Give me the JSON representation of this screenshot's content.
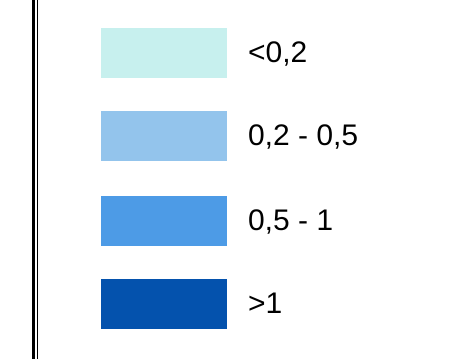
{
  "legend": {
    "items": [
      {
        "label": "<0,2",
        "color": "#c7f0ee"
      },
      {
        "label": "0,2 - 0,5",
        "color": "#93c4ec"
      },
      {
        "label": "0,5 - 1",
        "color": "#4d9be6"
      },
      {
        "label": ">1",
        "color": "#0452ad"
      }
    ]
  }
}
